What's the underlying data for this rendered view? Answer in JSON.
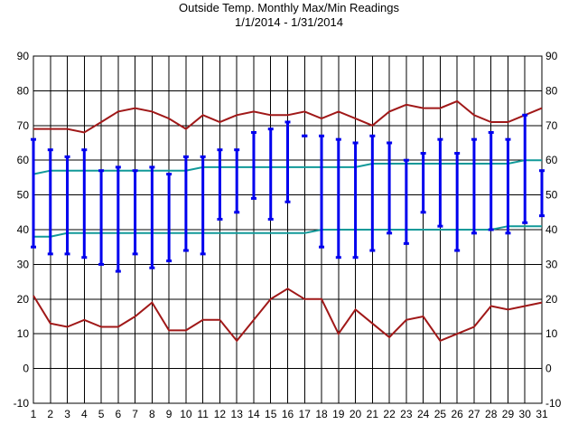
{
  "chart_data": {
    "type": "line",
    "title": "Outside Temp. Monthly Max/Min Readings",
    "subtitle": "1/1/2014 - 1/31/2014",
    "xlabel": "",
    "ylabel": "",
    "x": [
      1,
      2,
      3,
      4,
      5,
      6,
      7,
      8,
      9,
      10,
      11,
      12,
      13,
      14,
      15,
      16,
      17,
      18,
      19,
      20,
      21,
      22,
      23,
      24,
      25,
      26,
      27,
      28,
      29,
      30,
      31
    ],
    "ylim": [
      -10,
      90
    ],
    "yticks": [
      -10,
      0,
      10,
      20,
      30,
      40,
      50,
      60,
      70,
      80,
      90
    ],
    "grid": true,
    "colors": {
      "record": "#a01818",
      "normal": "#119999",
      "daily_range": "#0000ee",
      "grid": "#000000"
    },
    "series": [
      {
        "values": [
          69,
          69,
          69,
          68,
          71,
          74,
          75,
          74,
          72,
          69,
          73,
          71,
          73,
          74,
          73,
          73,
          74,
          72,
          74,
          72,
          70,
          74,
          76,
          75,
          75,
          77,
          73,
          71,
          71,
          73,
          75
        ]
      },
      {
        "values": [
          21,
          13,
          12,
          14,
          12,
          12,
          15,
          19,
          11,
          11,
          14,
          14,
          8,
          14,
          20,
          23,
          20,
          20,
          10,
          17,
          13,
          9,
          14,
          15,
          8,
          10,
          12,
          18,
          17,
          18,
          19
        ]
      },
      {
        "values": [
          56,
          57,
          57,
          57,
          57,
          57,
          57,
          57,
          57,
          57,
          58,
          58,
          58,
          58,
          58,
          58,
          58,
          58,
          58,
          58,
          59,
          59,
          59,
          59,
          59,
          59,
          59,
          59,
          59,
          60,
          60
        ]
      },
      {
        "values": [
          38,
          38,
          39,
          39,
          39,
          39,
          39,
          39,
          39,
          39,
          39,
          39,
          39,
          39,
          39,
          39,
          39,
          40,
          40,
          40,
          40,
          40,
          40,
          40,
          40,
          40,
          40,
          40,
          41,
          41,
          41
        ]
      },
      {
        "type": "range",
        "high": [
          66,
          63,
          61,
          63,
          57,
          58,
          57,
          58,
          56,
          61,
          61,
          63,
          63,
          68,
          69,
          71,
          67,
          67,
          66,
          65,
          67,
          65,
          60,
          62,
          66,
          62,
          66,
          68,
          66,
          73,
          57
        ],
        "low": [
          35,
          33,
          33,
          32,
          30,
          28,
          33,
          29,
          31,
          34,
          33,
          43,
          45,
          49,
          43,
          48,
          67,
          35,
          32,
          32,
          34,
          39,
          36,
          45,
          41,
          34,
          39,
          40,
          39,
          42,
          44
        ]
      }
    ]
  }
}
